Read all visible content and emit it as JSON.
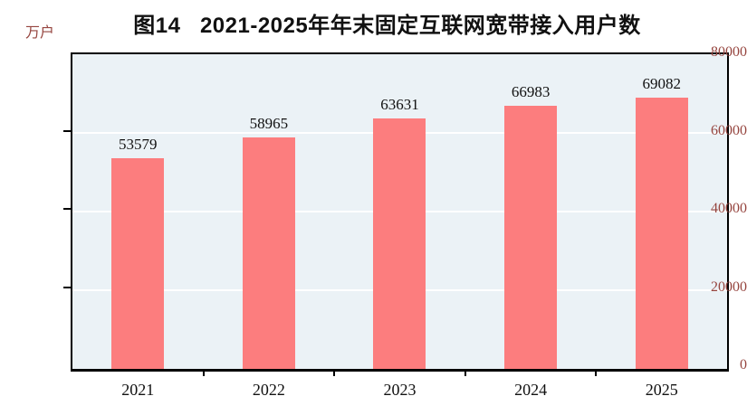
{
  "chart_data": {
    "type": "bar",
    "title": "图14   2021-2025年年末固定互联网宽带接入用户数",
    "unit_label": "万户",
    "categories": [
      "2021",
      "2022",
      "2023",
      "2024",
      "2025"
    ],
    "values": [
      53579,
      58965,
      63631,
      66983,
      69082
    ],
    "xlabel": "",
    "ylabel": "万户",
    "ylim": [
      0,
      80000
    ],
    "y_ticks": [
      0,
      20000,
      40000,
      60000,
      80000
    ],
    "grid": "horizontal-white-under-bars",
    "legend": "none",
    "colors": {
      "bar_fill": "#FC7D7E",
      "plot_background": "#EBF2F6",
      "plot_border": "#000000",
      "gridline": "#FFFFFF",
      "axis_tick_label": "#96453F",
      "title_text": "#111111",
      "data_label_text": "#111111",
      "page_background": "#FFFFFF"
    }
  }
}
